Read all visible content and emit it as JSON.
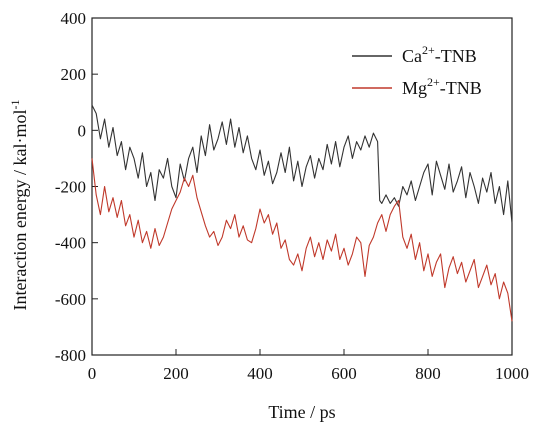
{
  "chart_data": {
    "type": "line",
    "xlabel": "Time / ps",
    "ylabel": "Interaction energy / kal·mol",
    "ylabel_superscript": "-1",
    "xlim": [
      0,
      1000
    ],
    "ylim": [
      -800,
      400
    ],
    "xticks": [
      0,
      200,
      400,
      600,
      800,
      1000
    ],
    "yticks": [
      400,
      200,
      0,
      -200,
      -400,
      -600,
      -800
    ],
    "grid": false,
    "legend_position": "top-right",
    "series": [
      {
        "name": "Ca-TNB",
        "name_base": "Ca",
        "name_superscript": "2+",
        "name_suffix": "-TNB",
        "color": "#333333",
        "x": [
          0,
          10,
          20,
          30,
          40,
          50,
          60,
          70,
          80,
          90,
          100,
          110,
          120,
          130,
          140,
          150,
          160,
          170,
          180,
          190,
          200,
          210,
          220,
          230,
          240,
          250,
          260,
          270,
          280,
          290,
          300,
          310,
          320,
          330,
          340,
          350,
          360,
          370,
          380,
          390,
          400,
          410,
          420,
          430,
          440,
          450,
          460,
          470,
          480,
          490,
          500,
          510,
          520,
          530,
          540,
          550,
          560,
          570,
          580,
          590,
          600,
          610,
          620,
          630,
          640,
          650,
          660,
          670,
          680,
          685,
          690,
          700,
          710,
          720,
          730,
          740,
          750,
          760,
          770,
          780,
          790,
          800,
          810,
          820,
          830,
          840,
          850,
          860,
          870,
          880,
          890,
          900,
          910,
          920,
          930,
          940,
          950,
          960,
          970,
          980,
          990,
          1000
        ],
        "values": [
          90,
          60,
          -30,
          40,
          -60,
          10,
          -90,
          -40,
          -140,
          -60,
          -100,
          -170,
          -80,
          -200,
          -150,
          -250,
          -140,
          -170,
          -100,
          -200,
          -240,
          -120,
          -180,
          -100,
          -60,
          -150,
          -20,
          -90,
          20,
          -70,
          -30,
          30,
          -50,
          40,
          -60,
          10,
          -80,
          -20,
          -100,
          -140,
          -70,
          -160,
          -110,
          -190,
          -150,
          -80,
          -150,
          -60,
          -180,
          -110,
          -200,
          -130,
          -90,
          -170,
          -100,
          -140,
          -50,
          -120,
          -40,
          -130,
          -60,
          -20,
          -100,
          -40,
          -70,
          -20,
          -60,
          -10,
          -40,
          -250,
          -260,
          -230,
          -260,
          -240,
          -270,
          -200,
          -230,
          -180,
          -250,
          -200,
          -150,
          -120,
          -230,
          -110,
          -160,
          -210,
          -120,
          -220,
          -180,
          -130,
          -240,
          -150,
          -200,
          -260,
          -170,
          -220,
          -150,
          -260,
          -200,
          -300,
          -180,
          -330
        ]
      },
      {
        "name": "Mg-TNB",
        "name_base": "Mg",
        "name_superscript": "2+",
        "name_suffix": "-TNB",
        "color": "#c0392b",
        "x": [
          0,
          10,
          20,
          30,
          40,
          50,
          60,
          70,
          80,
          90,
          100,
          110,
          120,
          130,
          140,
          150,
          160,
          170,
          180,
          190,
          200,
          210,
          220,
          230,
          240,
          250,
          260,
          270,
          280,
          290,
          300,
          310,
          320,
          330,
          340,
          350,
          360,
          370,
          380,
          390,
          400,
          410,
          420,
          430,
          440,
          450,
          460,
          470,
          480,
          490,
          500,
          510,
          520,
          530,
          540,
          550,
          560,
          570,
          580,
          590,
          600,
          610,
          620,
          630,
          640,
          650,
          660,
          670,
          680,
          690,
          700,
          710,
          720,
          730,
          740,
          750,
          760,
          770,
          780,
          790,
          800,
          810,
          820,
          830,
          840,
          850,
          860,
          870,
          880,
          890,
          900,
          910,
          920,
          930,
          940,
          950,
          960,
          970,
          980,
          990,
          1000
        ],
        "values": [
          -100,
          -230,
          -300,
          -200,
          -290,
          -240,
          -310,
          -250,
          -340,
          -300,
          -380,
          -320,
          -400,
          -360,
          -420,
          -350,
          -410,
          -380,
          -330,
          -280,
          -250,
          -220,
          -170,
          -200,
          -160,
          -240,
          -290,
          -340,
          -380,
          -360,
          -410,
          -380,
          -320,
          -350,
          -300,
          -380,
          -340,
          -390,
          -400,
          -350,
          -280,
          -330,
          -300,
          -370,
          -330,
          -420,
          -390,
          -460,
          -480,
          -440,
          -500,
          -420,
          -380,
          -450,
          -400,
          -460,
          -390,
          -430,
          -370,
          -460,
          -420,
          -480,
          -440,
          -380,
          -400,
          -520,
          -410,
          -380,
          -330,
          -300,
          -360,
          -300,
          -270,
          -250,
          -380,
          -420,
          -370,
          -460,
          -400,
          -500,
          -440,
          -520,
          -470,
          -440,
          -560,
          -490,
          -450,
          -510,
          -470,
          -540,
          -500,
          -460,
          -560,
          -520,
          -480,
          -550,
          -510,
          -600,
          -540,
          -580,
          -680
        ]
      }
    ]
  }
}
